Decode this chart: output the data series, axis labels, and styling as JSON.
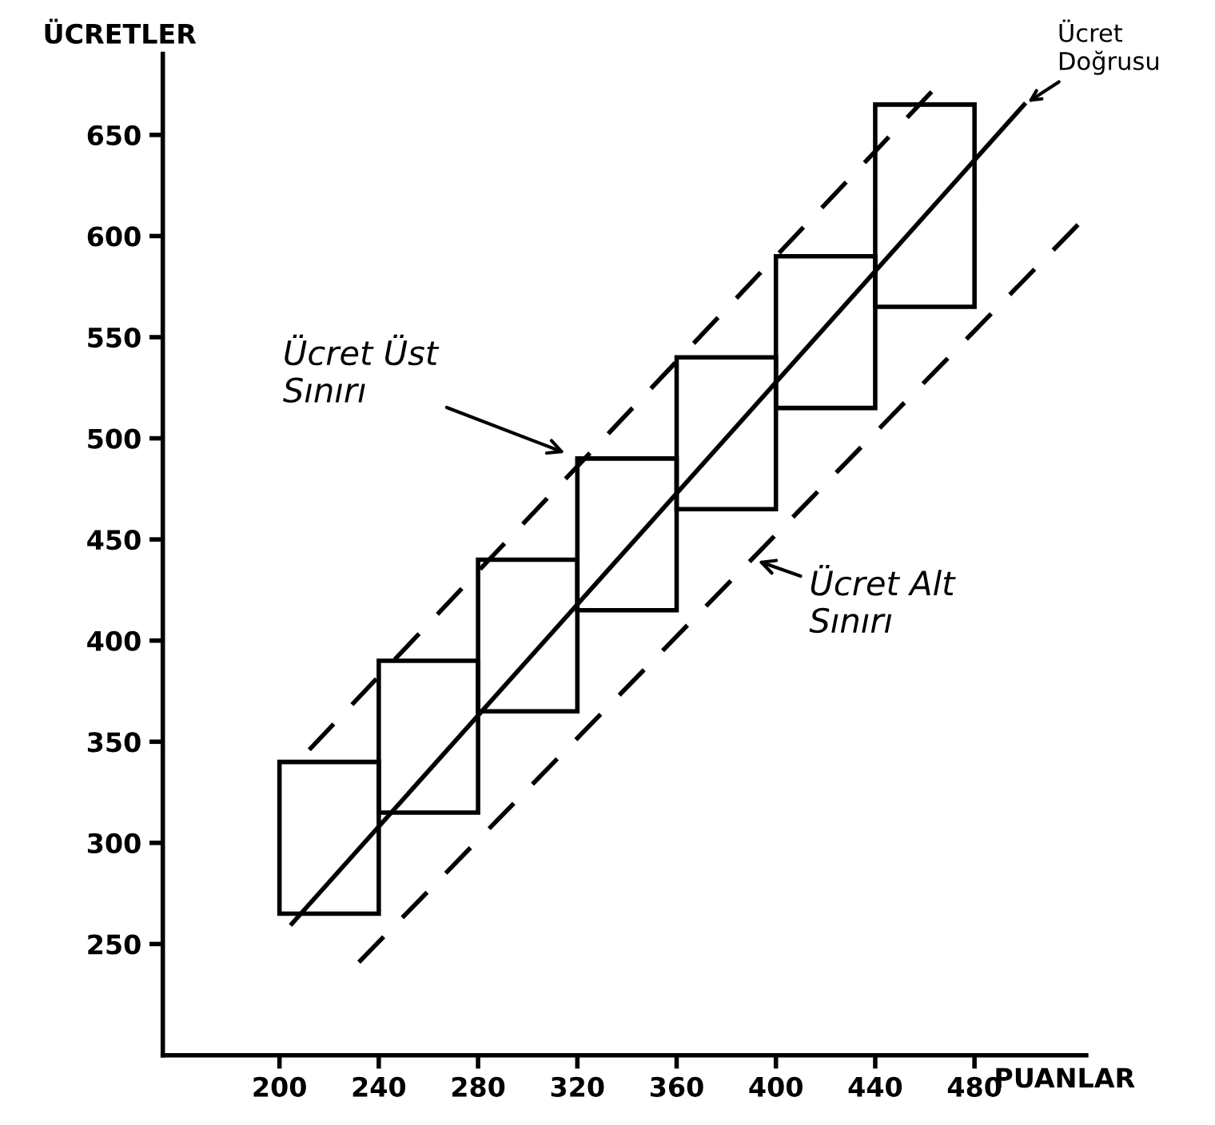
{
  "chart_data": {
    "type": "line",
    "xlabel": "PUANLAR",
    "ylabel": "ÜCRETLER",
    "xlim": [
      153,
      525
    ],
    "ylim": [
      195,
      690
    ],
    "xticks": [
      200,
      240,
      280,
      320,
      360,
      400,
      440,
      480
    ],
    "yticks": [
      250,
      300,
      350,
      400,
      450,
      500,
      550,
      600,
      650
    ],
    "grid": false,
    "legend": false,
    "marker": "none",
    "series": [
      {
        "type": "bar",
        "color": "#000000",
        "x": [
          220,
          260,
          300,
          340,
          380,
          420,
          460
        ],
        "base": [
          265,
          315,
          365,
          415,
          465,
          515,
          565
        ],
        "values": [
          75,
          75,
          75,
          75,
          75,
          75,
          100
        ]
      },
      {
        "color": "#000000",
        "line_style": "solid",
        "x": [
          205,
          500
        ],
        "values": [
          260,
          665
        ]
      },
      {
        "color": "#000000",
        "line_style": "dashed",
        "x": [
          212,
          464
        ],
        "values": [
          346,
          673
        ]
      },
      {
        "color": "#000000",
        "line_style": "dashed",
        "x": [
          232,
          522
        ],
        "values": [
          241,
          606
        ]
      }
    ],
    "annotations": [
      "Ücret Üst\nSınırı",
      "Ücret Alt\nSınırı",
      {
        "text": "Ücret\nDoğrusu",
        "x": 500,
        "y": 665
      }
    ]
  }
}
